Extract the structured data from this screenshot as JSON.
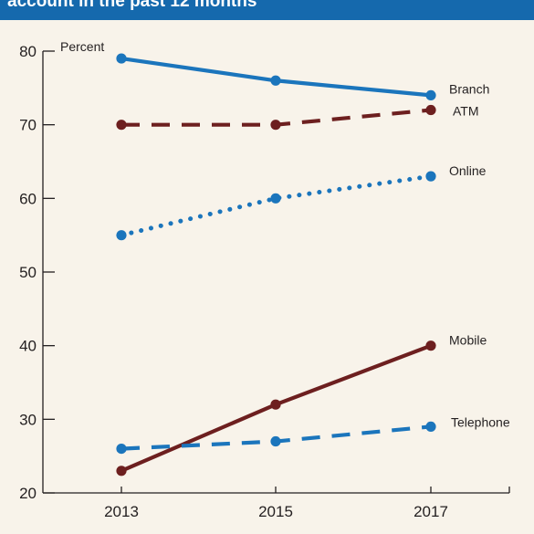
{
  "header": {
    "title": "account in the past 12 months"
  },
  "colors": {
    "background": "#f8f3ea",
    "header": "#1569ad",
    "blue": "#1b75bc",
    "maroon": "#6d1f1f",
    "axis": "#231f20"
  },
  "chart_data": {
    "type": "line",
    "title": "account in the past 12 months",
    "unit_label": "Percent",
    "x": [
      2013,
      2015,
      2017
    ],
    "ylim": [
      20,
      80
    ],
    "yticks": [
      20,
      30,
      40,
      50,
      60,
      70,
      80
    ],
    "grid": false,
    "series": [
      {
        "name": "Branch",
        "values": [
          79,
          76,
          74
        ],
        "color": "#1b75bc",
        "style": "solid"
      },
      {
        "name": "ATM",
        "values": [
          70,
          70,
          72
        ],
        "color": "#6d1f1f",
        "style": "dashed"
      },
      {
        "name": "Online",
        "values": [
          55,
          60,
          63
        ],
        "color": "#1b75bc",
        "style": "dotted"
      },
      {
        "name": "Mobile",
        "values": [
          23,
          32,
          40
        ],
        "color": "#6d1f1f",
        "style": "solid"
      },
      {
        "name": "Telephone",
        "values": [
          26,
          27,
          29
        ],
        "color": "#1b75bc",
        "style": "dashed"
      }
    ]
  }
}
